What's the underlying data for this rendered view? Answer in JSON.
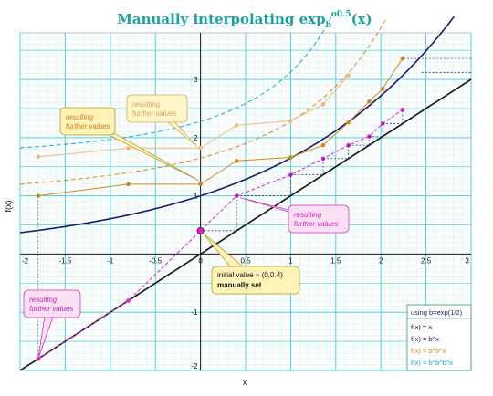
{
  "title": "Manually interpolating exp",
  "title_sub": "b",
  "title_sup": "o0.5",
  "title_tail": "(x)",
  "chart_data": {
    "type": "line",
    "xlabel": "x",
    "ylabel": "f(x)",
    "xlim": [
      -2,
      3
    ],
    "ylim": [
      -2,
      3.8
    ],
    "x_ticks": [
      "-2",
      "-1.5",
      "-1",
      "-0.5",
      "0",
      "0.5",
      "1",
      "1.5",
      "2",
      "2.5",
      "3"
    ],
    "y_ticks": [
      "-2",
      "-1",
      "1",
      "2",
      "3"
    ],
    "grid": true,
    "legend_position": "bottom-right",
    "legend_title": "using b=exp(1/2)",
    "legend_items": [
      {
        "label": "f(x) = x",
        "color": "#111111"
      },
      {
        "label": "f(x) = b^x",
        "color": "#1a1a66"
      },
      {
        "label": "f(x) = b^b^x",
        "color": "#d08a1a"
      },
      {
        "label": "f(x) = b^b^b^x",
        "color": "#20a8c8"
      }
    ],
    "series": [
      {
        "name": "f(x) = x",
        "color": "#111111",
        "fn": "x"
      },
      {
        "name": "f(x) = b^x",
        "color": "#1a1a66",
        "fn": "bx"
      },
      {
        "name": "f(x) = b^b^x",
        "color": "#d08a1a",
        "fn": "bbx"
      },
      {
        "name": "f(x) = b^b^b^x",
        "color": "#20a8c8",
        "fn": "bbbx"
      }
    ],
    "interp_magenta": {
      "color": "#e020d0",
      "x": [
        -1.8,
        -0.8,
        0,
        0.4,
        1.0,
        1.36,
        1.64,
        1.87,
        2.02,
        2.24
      ],
      "y": [
        -1.8,
        -0.8,
        0.4,
        1.0,
        1.36,
        1.64,
        1.87,
        2.02,
        2.24,
        2.48
      ]
    },
    "interp_orange": {
      "color": "#d08a1a",
      "x": [
        -1.8,
        -0.8,
        0,
        0.4,
        1.0,
        1.36,
        1.64,
        1.87,
        2.02,
        2.24
      ],
      "y": [
        1.0,
        1.2,
        1.2,
        1.6,
        1.66,
        1.87,
        2.26,
        2.62,
        2.84,
        3.36
      ]
    },
    "interp_peach": {
      "color": "#f0b880",
      "x": [
        -1.8,
        -0.8,
        0,
        0.4,
        1.0,
        1.36,
        1.64
      ],
      "y": [
        1.67,
        1.82,
        1.82,
        2.21,
        2.29,
        2.57,
        3.07
      ]
    },
    "initial_point": {
      "x": 0,
      "y": 0.4
    },
    "annotations": [
      {
        "text1": "resulting",
        "text2": "further values",
        "style": "yellow",
        "pos": "upper-left"
      },
      {
        "text1": "resulting",
        "text2": "further values",
        "style": "yellow",
        "pos": "upper-mid"
      },
      {
        "text1": "resulting",
        "text2": "further values",
        "style": "magenta",
        "pos": "right"
      },
      {
        "text1": "resulting",
        "text2": "further values",
        "style": "magenta",
        "pos": "lower-left"
      },
      {
        "text1": "initial value ~ (0,0.4)",
        "text2": "manually set",
        "style": "yellow",
        "pos": "bottom"
      }
    ]
  }
}
